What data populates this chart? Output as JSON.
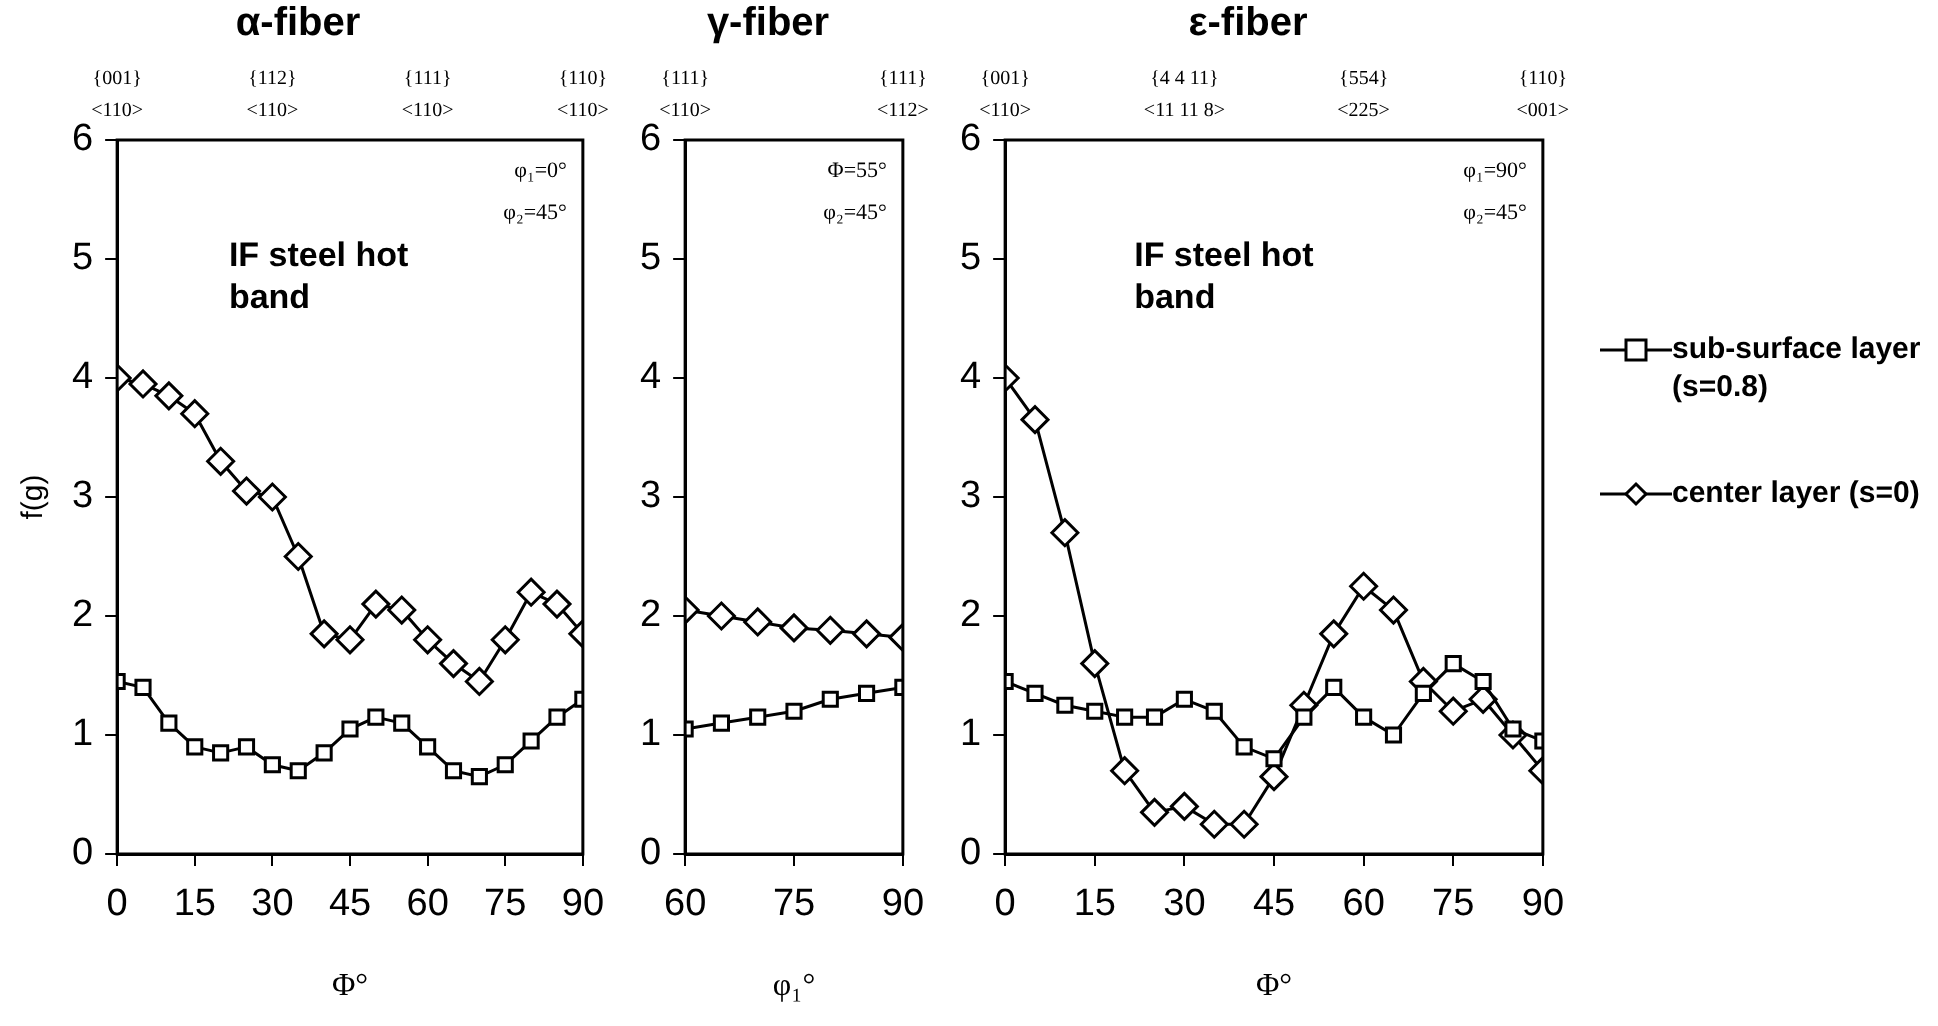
{
  "chart_data": [
    {
      "type": "line",
      "title": "α-fiber",
      "xlabel": "Φ°",
      "ylabel": "f(g)",
      "x": [
        0,
        5,
        10,
        15,
        20,
        25,
        30,
        35,
        40,
        45,
        50,
        55,
        60,
        65,
        70,
        75,
        80,
        85,
        90
      ],
      "series": [
        {
          "color": "#000000",
          "marker": "square",
          "values": [
            1.45,
            1.4,
            1.1,
            0.9,
            0.85,
            0.9,
            0.75,
            0.7,
            0.85,
            1.05,
            1.15,
            1.1,
            0.9,
            0.7,
            0.65,
            0.75,
            0.95,
            1.15,
            1.3
          ]
        },
        {
          "color": "#000000",
          "marker": "diamond",
          "values": [
            4.0,
            3.95,
            3.85,
            3.7,
            3.3,
            3.05,
            3.0,
            2.5,
            1.85,
            1.8,
            2.1,
            2.05,
            1.8,
            1.6,
            1.45,
            1.8,
            2.2,
            2.1,
            1.85
          ]
        }
      ],
      "xlim": [
        0,
        90
      ],
      "xticks": [
        0,
        15,
        30,
        45,
        60,
        75,
        90
      ],
      "ylim": [
        0,
        6
      ],
      "yticks": [
        0,
        1,
        2,
        3,
        4,
        5,
        6
      ],
      "grid": false,
      "legend": false,
      "line_style": "solid",
      "annotations": [
        "{001}\n<110>",
        "{112}\n<110>",
        "{111}\n<110>",
        "{110}\n<110>",
        "φ₁=0°",
        "φ₂=45°",
        "IF steel hot band"
      ]
    },
    {
      "type": "line",
      "title": "γ-fiber",
      "xlabel": "φ₁°",
      "x": [
        60,
        65,
        70,
        75,
        80,
        85,
        90
      ],
      "series": [
        {
          "color": "#000000",
          "marker": "square",
          "values": [
            1.05,
            1.1,
            1.15,
            1.2,
            1.3,
            1.35,
            1.4
          ]
        },
        {
          "color": "#000000",
          "marker": "diamond",
          "values": [
            2.05,
            2.0,
            1.95,
            1.9,
            1.88,
            1.85,
            1.82
          ]
        }
      ],
      "xlim": [
        60,
        90
      ],
      "xticks": [
        60,
        75,
        90
      ],
      "ylim": [
        0,
        6
      ],
      "yticks": [
        0,
        1,
        2,
        3,
        4,
        5,
        6
      ],
      "grid": false,
      "legend": false,
      "line_style": "solid",
      "annotations": [
        "{111}\n<110>",
        "{111}\n<112>",
        "Φ=55°",
        "φ₂=45°"
      ]
    },
    {
      "type": "line",
      "title": "ε-fiber",
      "xlabel": "Φ°",
      "x": [
        0,
        5,
        10,
        15,
        20,
        25,
        30,
        35,
        40,
        45,
        50,
        55,
        60,
        65,
        70,
        75,
        80,
        85,
        90
      ],
      "series": [
        {
          "name": "sub-surface layer (s=0.8)",
          "color": "#000000",
          "marker": "square",
          "values": [
            1.45,
            1.35,
            1.25,
            1.2,
            1.15,
            1.15,
            1.3,
            1.2,
            0.9,
            0.8,
            1.15,
            1.4,
            1.15,
            1.0,
            1.35,
            1.6,
            1.45,
            1.05,
            0.95
          ]
        },
        {
          "name": "center layer (s=0)",
          "color": "#000000",
          "marker": "diamond",
          "values": [
            4.0,
            3.65,
            2.7,
            1.6,
            0.7,
            0.35,
            0.4,
            0.25,
            0.25,
            0.65,
            1.25,
            1.85,
            2.25,
            2.05,
            1.45,
            1.2,
            1.3,
            1.0,
            0.7
          ]
        }
      ],
      "xlim": [
        0,
        90
      ],
      "xticks": [
        0,
        15,
        30,
        45,
        60,
        75,
        90
      ],
      "ylim": [
        0,
        6
      ],
      "yticks": [
        0,
        1,
        2,
        3,
        4,
        5,
        6
      ],
      "grid": false,
      "legend": "right",
      "line_style": "solid",
      "annotations": [
        "{001}\n<110>",
        "{4 4 11}\n<11 11 8>",
        "{554}\n<225>",
        "{110}\n<001>",
        "φ₁=90°",
        "φ₂=45°",
        "IF steel hot band"
      ]
    }
  ]
}
